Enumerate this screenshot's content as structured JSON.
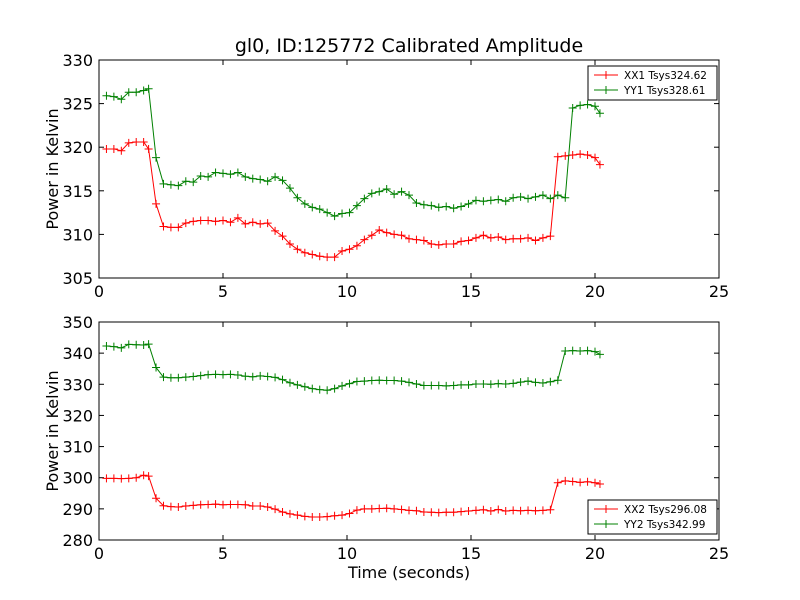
{
  "title": "gl0, ID:125772 Calibrated Amplitude",
  "colors": {
    "red": "#ff0000",
    "green": "#008000"
  },
  "chart_data": [
    {
      "type": "line",
      "ylabel": "Power in Kelvin",
      "xlabel": "",
      "xlim": [
        0,
        25
      ],
      "ylim": [
        305,
        330
      ],
      "xticks": [
        0,
        5,
        10,
        15,
        20,
        25
      ],
      "yticks": [
        305,
        310,
        315,
        320,
        325,
        330
      ],
      "legend_position": "top-right",
      "grid": false,
      "x": [
        0.3,
        0.6,
        0.9,
        1.2,
        1.5,
        1.8,
        2.0,
        2.3,
        2.6,
        2.9,
        3.2,
        3.5,
        3.8,
        4.1,
        4.4,
        4.7,
        5.0,
        5.3,
        5.6,
        5.9,
        6.2,
        6.5,
        6.8,
        7.1,
        7.4,
        7.7,
        8.0,
        8.3,
        8.6,
        8.9,
        9.2,
        9.5,
        9.8,
        10.1,
        10.4,
        10.7,
        11.0,
        11.3,
        11.6,
        11.9,
        12.2,
        12.5,
        12.8,
        13.1,
        13.4,
        13.7,
        14.0,
        14.3,
        14.6,
        14.9,
        15.2,
        15.5,
        15.8,
        16.1,
        16.4,
        16.7,
        17.0,
        17.3,
        17.6,
        17.9,
        18.2,
        18.5,
        18.8,
        19.1,
        19.4,
        19.7,
        20.0,
        20.2
      ],
      "series": [
        {
          "name": "XX1 Tsys324.62",
          "color": "#ff0000",
          "values": [
            319.8,
            319.8,
            319.6,
            320.5,
            320.6,
            320.6,
            319.8,
            313.5,
            310.9,
            310.8,
            310.8,
            311.3,
            311.5,
            311.6,
            311.6,
            311.5,
            311.6,
            311.4,
            311.9,
            311.2,
            311.4,
            311.2,
            311.3,
            310.4,
            309.8,
            308.9,
            308.3,
            307.9,
            307.7,
            307.5,
            307.4,
            307.4,
            308.1,
            308.3,
            308.7,
            309.4,
            309.9,
            310.5,
            310.2,
            310.0,
            309.9,
            309.5,
            309.4,
            309.3,
            308.9,
            308.8,
            308.9,
            308.9,
            309.2,
            309.3,
            309.6,
            309.9,
            309.6,
            309.7,
            309.4,
            309.5,
            309.5,
            309.6,
            309.3,
            309.6,
            309.8,
            318.9,
            319.0,
            319.1,
            319.2,
            319.1,
            318.8,
            318.0
          ]
        },
        {
          "name": "YY1 Tsys328.61",
          "color": "#008000",
          "values": [
            325.9,
            325.8,
            325.5,
            326.3,
            326.3,
            326.5,
            326.7,
            318.8,
            315.8,
            315.7,
            315.6,
            316.1,
            316.0,
            316.7,
            316.6,
            317.1,
            317.0,
            316.9,
            317.1,
            316.6,
            316.4,
            316.3,
            316.1,
            316.6,
            316.2,
            315.3,
            314.2,
            313.5,
            313.1,
            312.9,
            312.5,
            312.1,
            312.4,
            312.5,
            313.3,
            314.1,
            314.7,
            314.9,
            315.2,
            314.6,
            314.9,
            314.5,
            313.6,
            313.4,
            313.3,
            313.1,
            313.2,
            313.0,
            313.2,
            313.5,
            313.9,
            313.8,
            313.9,
            314.0,
            313.8,
            314.2,
            314.3,
            314.1,
            314.3,
            314.5,
            314.1,
            314.5,
            314.2,
            324.5,
            324.8,
            324.9,
            324.7,
            323.9
          ]
        }
      ]
    },
    {
      "type": "line",
      "ylabel": "Power in Kelvin",
      "xlabel": "Time (seconds)",
      "xlim": [
        0,
        25
      ],
      "ylim": [
        280,
        350
      ],
      "xticks": [
        0,
        5,
        10,
        15,
        20,
        25
      ],
      "yticks": [
        280,
        290,
        300,
        310,
        320,
        330,
        340,
        350
      ],
      "legend_position": "bottom-right",
      "grid": false,
      "x": [
        0.3,
        0.6,
        0.9,
        1.2,
        1.5,
        1.8,
        2.0,
        2.3,
        2.6,
        2.9,
        3.2,
        3.5,
        3.8,
        4.1,
        4.4,
        4.7,
        5.0,
        5.3,
        5.6,
        5.9,
        6.2,
        6.5,
        6.8,
        7.1,
        7.4,
        7.7,
        8.0,
        8.3,
        8.6,
        8.9,
        9.2,
        9.5,
        9.8,
        10.1,
        10.4,
        10.7,
        11.0,
        11.3,
        11.6,
        11.9,
        12.2,
        12.5,
        12.8,
        13.1,
        13.4,
        13.7,
        14.0,
        14.3,
        14.6,
        14.9,
        15.2,
        15.5,
        15.8,
        16.1,
        16.4,
        16.7,
        17.0,
        17.3,
        17.6,
        17.9,
        18.2,
        18.5,
        18.8,
        19.1,
        19.4,
        19.7,
        20.0,
        20.2
      ],
      "series": [
        {
          "name": "XX2 Tsys296.08",
          "color": "#ff0000",
          "values": [
            299.8,
            299.8,
            299.7,
            299.8,
            300.0,
            300.8,
            300.5,
            293.4,
            291.0,
            290.7,
            290.6,
            290.9,
            291.1,
            291.3,
            291.4,
            291.5,
            291.3,
            291.4,
            291.4,
            291.3,
            290.9,
            290.9,
            290.6,
            289.9,
            289.0,
            288.4,
            288.0,
            287.6,
            287.4,
            287.4,
            287.5,
            287.8,
            288.0,
            288.5,
            289.6,
            290.0,
            290.0,
            290.1,
            290.2,
            290.0,
            289.8,
            289.5,
            289.4,
            289.0,
            288.9,
            288.8,
            288.9,
            288.9,
            289.1,
            289.3,
            289.5,
            289.7,
            289.3,
            289.8,
            289.3,
            289.5,
            289.4,
            289.5,
            289.4,
            289.5,
            289.7,
            298.4,
            299.0,
            298.8,
            298.5,
            298.7,
            298.4,
            298.0
          ]
        },
        {
          "name": "YY2 Tsys342.99",
          "color": "#008000",
          "values": [
            342.3,
            342.1,
            341.7,
            342.8,
            342.7,
            342.6,
            342.9,
            335.4,
            332.3,
            332.1,
            332.1,
            332.3,
            332.5,
            332.8,
            333.1,
            333.2,
            333.1,
            333.2,
            333.0,
            332.6,
            332.4,
            332.7,
            332.5,
            332.2,
            331.5,
            330.5,
            329.8,
            329.2,
            328.6,
            328.3,
            328.1,
            328.6,
            329.5,
            330.2,
            330.9,
            331.0,
            331.2,
            331.3,
            331.2,
            331.2,
            331.0,
            330.6,
            330.1,
            329.6,
            329.6,
            329.6,
            329.5,
            329.6,
            329.8,
            329.8,
            330.1,
            330.1,
            330.0,
            330.2,
            330.1,
            330.3,
            330.7,
            331.0,
            330.6,
            330.4,
            330.8,
            331.3,
            340.7,
            340.8,
            340.7,
            340.8,
            340.5,
            339.6
          ]
        }
      ]
    }
  ]
}
